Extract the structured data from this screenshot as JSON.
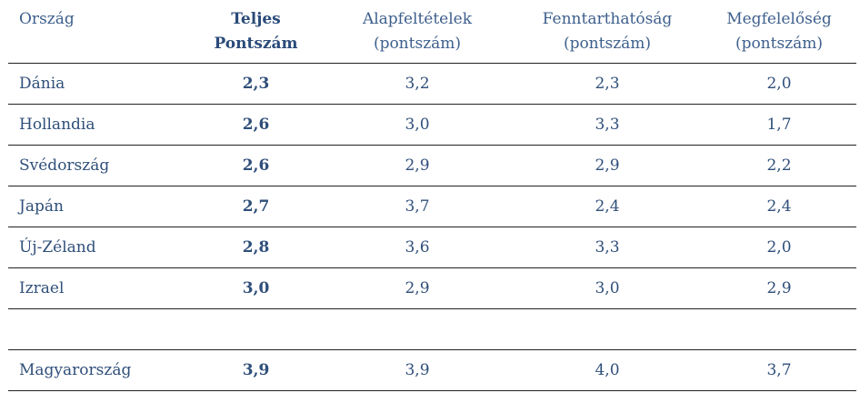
{
  "table": {
    "headers": {
      "country": "Ország",
      "total_line1": "Teljes",
      "total_line2": "Pontszám",
      "basic_line1": "Alapfeltételek",
      "basic_line2": "(pontszám)",
      "sustain_line1": "Fenntarthatóság",
      "sustain_line2": "(pontszám)",
      "adequacy_line1": "Megfelelőség",
      "adequacy_line2": "(pontszám)"
    },
    "rows": [
      {
        "country": "Dánia",
        "total": "2,3",
        "basic": "3,2",
        "sustain": "2,3",
        "adequacy": "2,0"
      },
      {
        "country": "Hollandia",
        "total": "2,6",
        "basic": "3,0",
        "sustain": "3,3",
        "adequacy": "1,7"
      },
      {
        "country": "Svédország",
        "total": "2,6",
        "basic": "2,9",
        "sustain": "2,9",
        "adequacy": "2,2"
      },
      {
        "country": "Japán",
        "total": "2,7",
        "basic": "3,7",
        "sustain": "2,4",
        "adequacy": "2,4"
      },
      {
        "country": "Új-Zéland",
        "total": "2,8",
        "basic": "3,6",
        "sustain": "3,3",
        "adequacy": "2,0"
      },
      {
        "country": "Izrael",
        "total": "3,0",
        "basic": "2,9",
        "sustain": "3,0",
        "adequacy": "2,9"
      }
    ],
    "highlight_row": {
      "country": "Magyarország",
      "total": "3,9",
      "basic": "3,9",
      "sustain": "4,0",
      "adequacy": "3,7"
    }
  }
}
